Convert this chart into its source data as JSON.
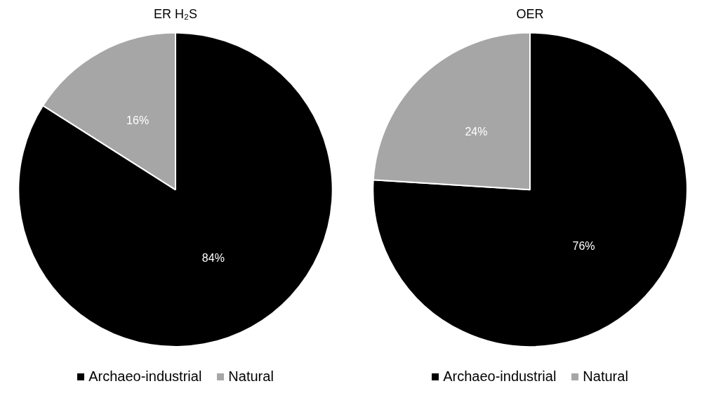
{
  "chart_data": [
    {
      "type": "pie",
      "title": "ER H₂S",
      "categories": [
        "Archaeo-industrial",
        "Natural"
      ],
      "values": [
        84,
        16
      ],
      "colors": [
        "#000000",
        "#a6a6a6"
      ],
      "value_labels": [
        "84%",
        "16%"
      ],
      "legend": "bottom"
    },
    {
      "type": "pie",
      "title": "OER",
      "categories": [
        "Archaeo-industrial",
        "Natural"
      ],
      "values": [
        76,
        24
      ],
      "colors": [
        "#000000",
        "#a6a6a6"
      ],
      "value_labels": [
        "76%",
        "24%"
      ],
      "legend": "bottom"
    }
  ]
}
